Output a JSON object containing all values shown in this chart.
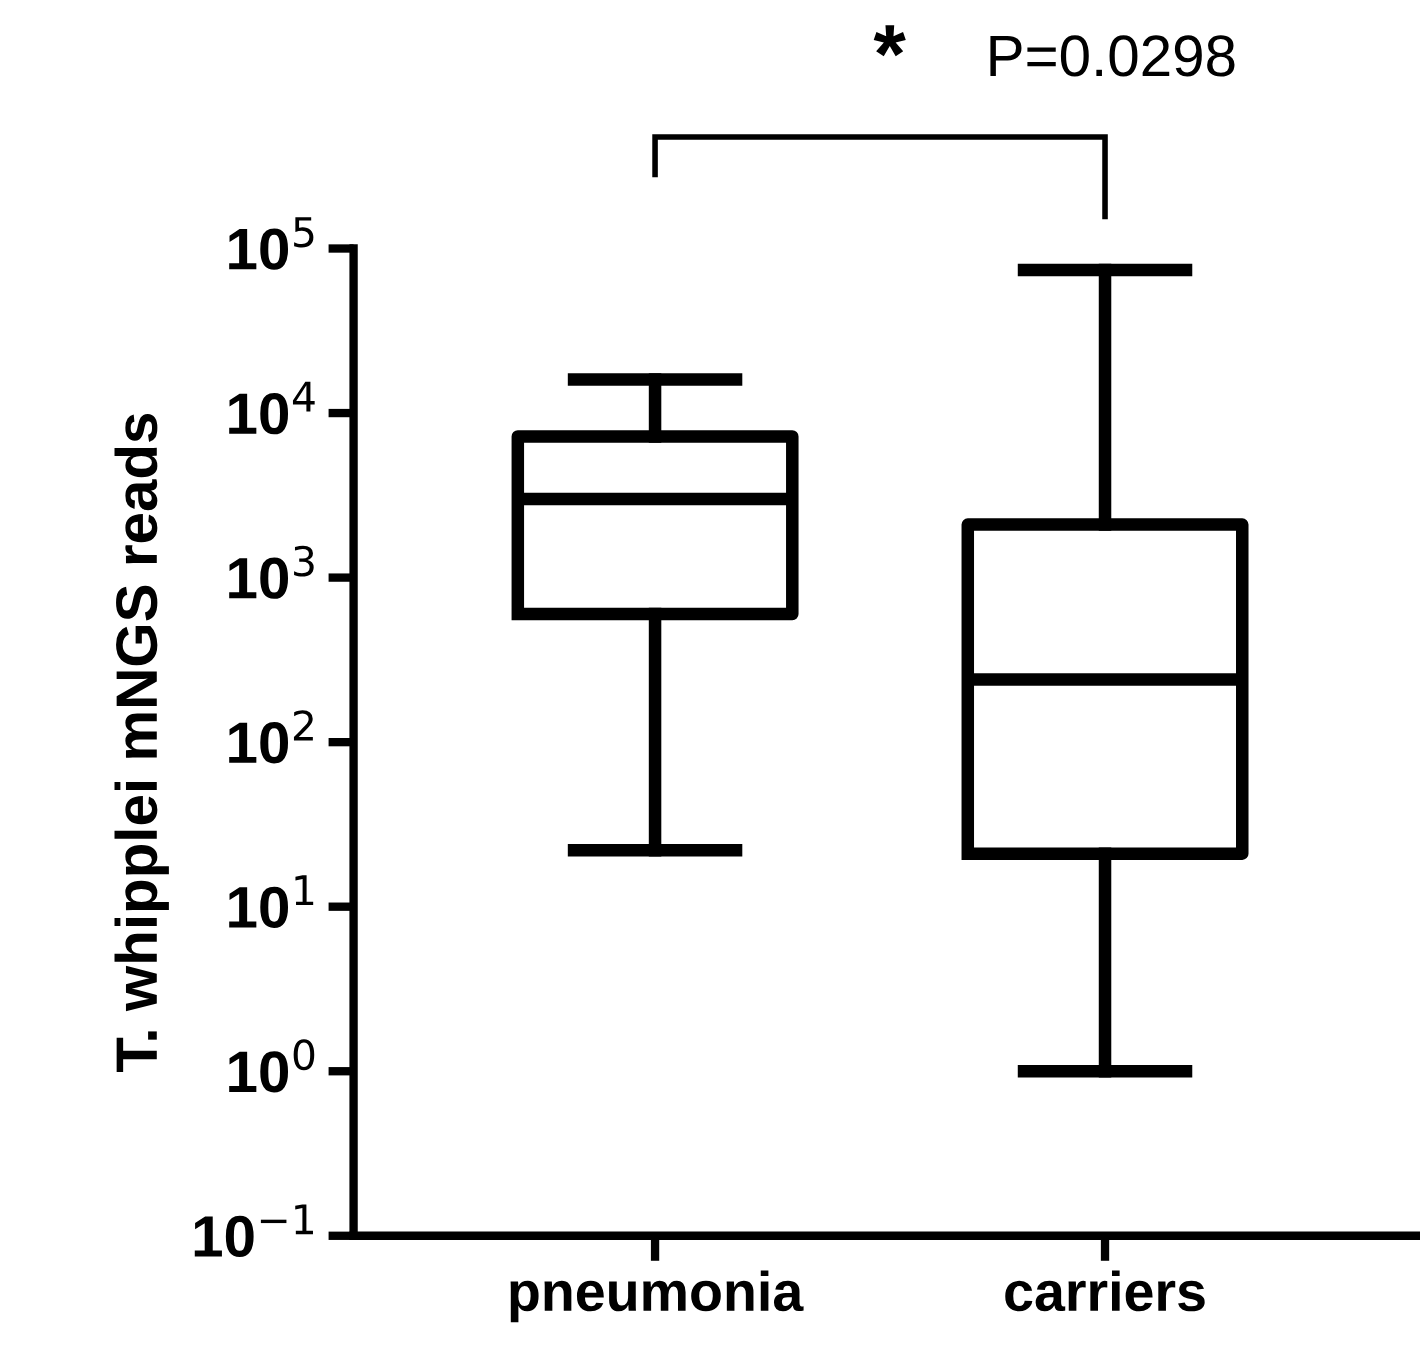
{
  "chart_data": {
    "type": "box",
    "ylabel": "T. whipplei mNGS reads",
    "categories": [
      "pneumonia",
      "carriers"
    ],
    "boxes": [
      {
        "low": 22,
        "q1": 600,
        "median": 3000,
        "q3": 7200,
        "high": 16000
      },
      {
        "low": 1,
        "q1": 21,
        "median": 240,
        "q3": 2100,
        "high": 74000
      }
    ],
    "log": true,
    "ylim": [
      0.1,
      100000
    ],
    "yticks": [
      {
        "value": 0.1,
        "label": "10$^{−1}$"
      },
      {
        "value": 1,
        "label": "10$^{0}$"
      },
      {
        "value": 10,
        "label": "10$^{1}$"
      },
      {
        "value": 100,
        "label": "10$^{2}$"
      },
      {
        "value": 1000,
        "label": "10$^{3}$"
      },
      {
        "value": 10000,
        "label": "10$^{4}$"
      },
      {
        "value": 100000,
        "label": "10$^{5}$"
      }
    ],
    "annotations": [
      "*",
      "P=0.0298"
    ],
    "grid": false,
    "color": "#000000"
  }
}
